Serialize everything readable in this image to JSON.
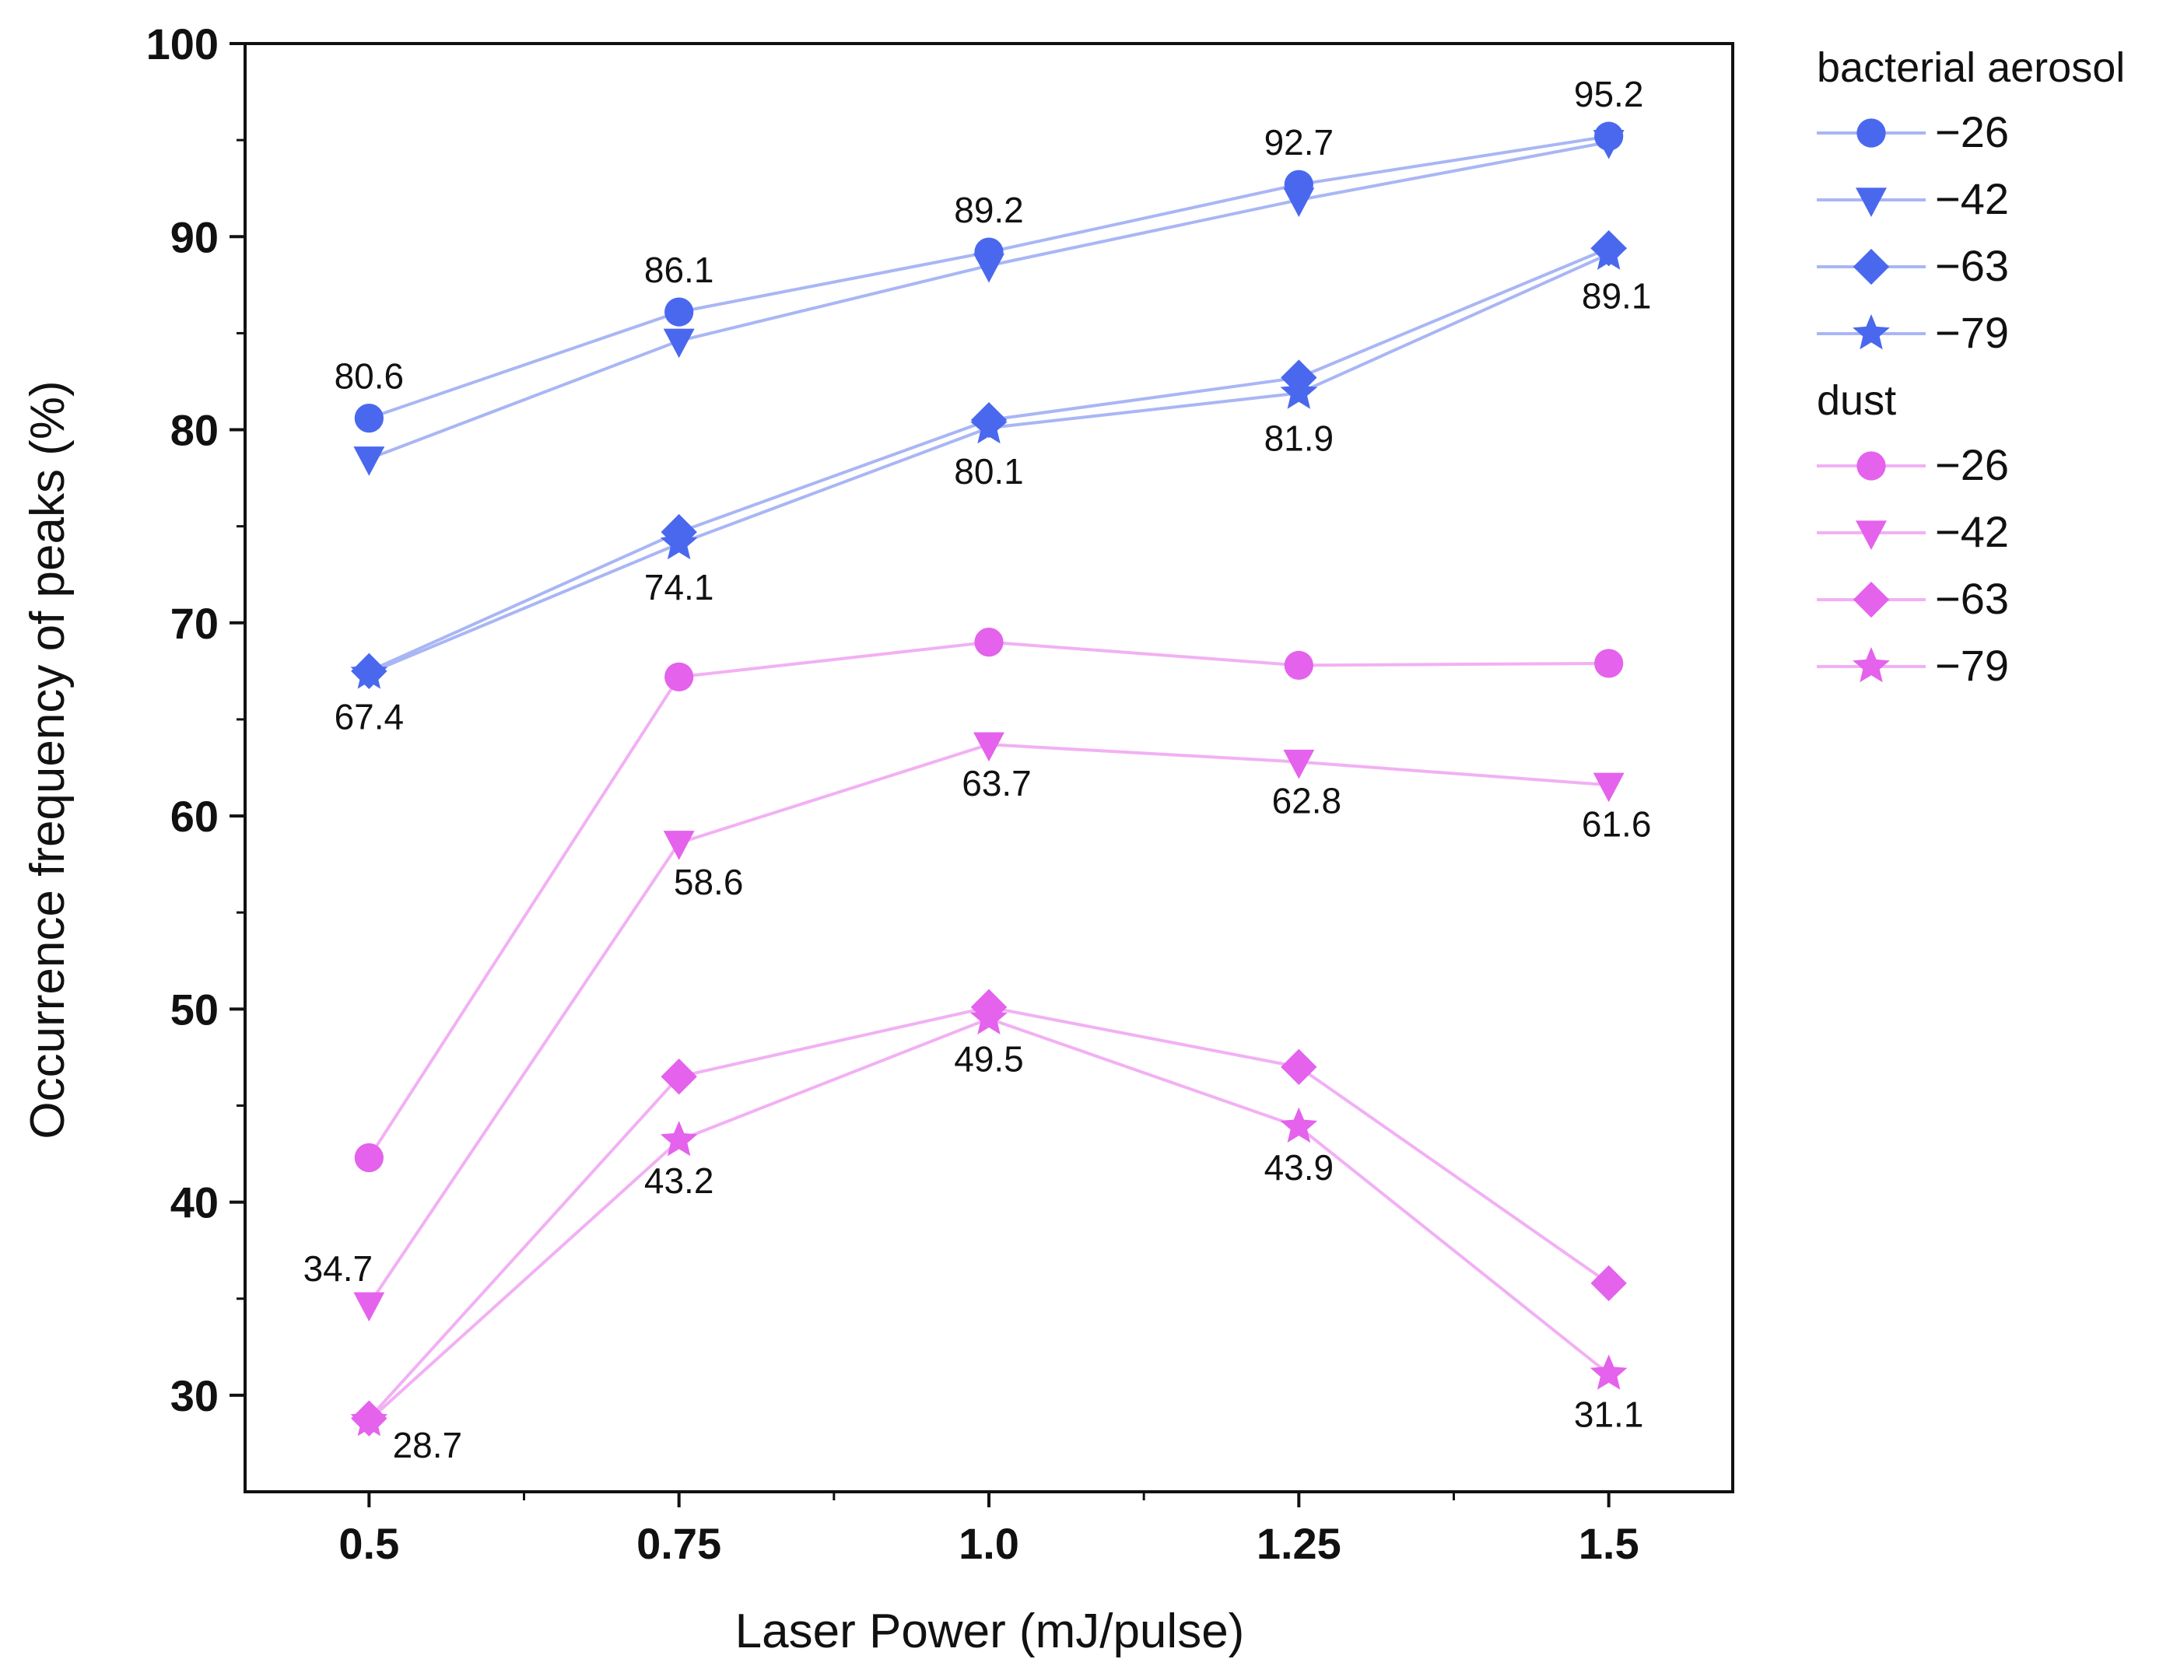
{
  "chart_data": {
    "type": "line",
    "xlabel": "Laser Power (mJ/pulse)",
    "ylabel": "Occurrence frequency of peaks (%)",
    "x": [
      0.5,
      0.75,
      1.0,
      1.25,
      1.5
    ],
    "x_tick_labels": [
      "0.5",
      "0.75",
      "1.0",
      "1.25",
      "1.5"
    ],
    "xlim": [
      0.4,
      1.6
    ],
    "ylim": [
      25,
      100
    ],
    "y_ticks": [
      30,
      40,
      50,
      60,
      70,
      80,
      90,
      100
    ],
    "y_tick_labels": [
      "30",
      "40",
      "50",
      "60",
      "70",
      "80",
      "90",
      "100"
    ],
    "grid": false,
    "legend_position": "outside right",
    "legend_groups": [
      {
        "title": "bacterial aerosol",
        "color": "#4a68ee",
        "line_color": "#a9b6f4",
        "series": [
          0,
          1,
          2,
          3
        ]
      },
      {
        "title": "dust",
        "color": "#e462ec",
        "line_color": "#f2b0f4",
        "series": [
          4,
          5,
          6,
          7
        ]
      }
    ],
    "series": [
      {
        "name": "−26",
        "group": "bacterial aerosol",
        "marker": "circle",
        "values": [
          80.6,
          86.1,
          89.2,
          92.7,
          95.2
        ]
      },
      {
        "name": "−42",
        "group": "bacterial aerosol",
        "marker": "triangle-down",
        "values": [
          78.5,
          84.6,
          88.5,
          91.9,
          94.9
        ]
      },
      {
        "name": "−63",
        "group": "bacterial aerosol",
        "marker": "diamond",
        "values": [
          67.5,
          74.7,
          80.5,
          82.7,
          89.4
        ]
      },
      {
        "name": "−79",
        "group": "bacterial aerosol",
        "marker": "star",
        "values": [
          67.4,
          74.1,
          80.1,
          81.9,
          89.1
        ]
      },
      {
        "name": "−26",
        "group": "dust",
        "marker": "circle",
        "values": [
          42.3,
          67.2,
          69.0,
          67.8,
          67.9
        ]
      },
      {
        "name": "−42",
        "group": "dust",
        "marker": "triangle-down",
        "values": [
          34.7,
          58.6,
          63.7,
          62.8,
          61.6
        ]
      },
      {
        "name": "−63",
        "group": "dust",
        "marker": "diamond",
        "values": [
          28.8,
          46.5,
          50.1,
          47.0,
          35.8
        ]
      },
      {
        "name": "−79",
        "group": "dust",
        "marker": "star",
        "values": [
          28.7,
          43.2,
          49.5,
          43.9,
          31.1
        ]
      }
    ],
    "annotations": [
      {
        "text": "80.6",
        "x": 0.5,
        "y": 80.6,
        "series": 0
      },
      {
        "text": "86.1",
        "x": 0.75,
        "y": 86.1,
        "series": 0
      },
      {
        "text": "89.2",
        "x": 1.0,
        "y": 89.2,
        "series": 0
      },
      {
        "text": "92.7",
        "x": 1.25,
        "y": 92.7,
        "series": 0
      },
      {
        "text": "95.2",
        "x": 1.5,
        "y": 95.2,
        "series": 0
      },
      {
        "text": "67.4",
        "x": 0.5,
        "y": 67.4,
        "series": 3
      },
      {
        "text": "74.1",
        "x": 0.75,
        "y": 74.1,
        "series": 3
      },
      {
        "text": "80.1",
        "x": 1.0,
        "y": 80.1,
        "series": 3
      },
      {
        "text": "81.9",
        "x": 1.25,
        "y": 81.9,
        "series": 3
      },
      {
        "text": "89.1",
        "x": 1.5,
        "y": 89.1,
        "series": 3
      },
      {
        "text": "34.7",
        "x": 0.5,
        "y": 34.7,
        "series": 5
      },
      {
        "text": "58.6",
        "x": 0.75,
        "y": 58.6,
        "series": 5
      },
      {
        "text": "63.7",
        "x": 1.0,
        "y": 63.7,
        "series": 5
      },
      {
        "text": "62.8",
        "x": 1.25,
        "y": 62.8,
        "series": 5
      },
      {
        "text": "61.6",
        "x": 1.5,
        "y": 61.6,
        "series": 5
      },
      {
        "text": "28.7",
        "x": 0.5,
        "y": 28.7,
        "series": 7
      },
      {
        "text": "43.2",
        "x": 0.75,
        "y": 43.2,
        "series": 7
      },
      {
        "text": "49.5",
        "x": 1.0,
        "y": 49.5,
        "series": 7
      },
      {
        "text": "43.9",
        "x": 1.25,
        "y": 43.9,
        "series": 7
      },
      {
        "text": "31.1",
        "x": 1.5,
        "y": 31.1,
        "series": 7
      }
    ]
  }
}
